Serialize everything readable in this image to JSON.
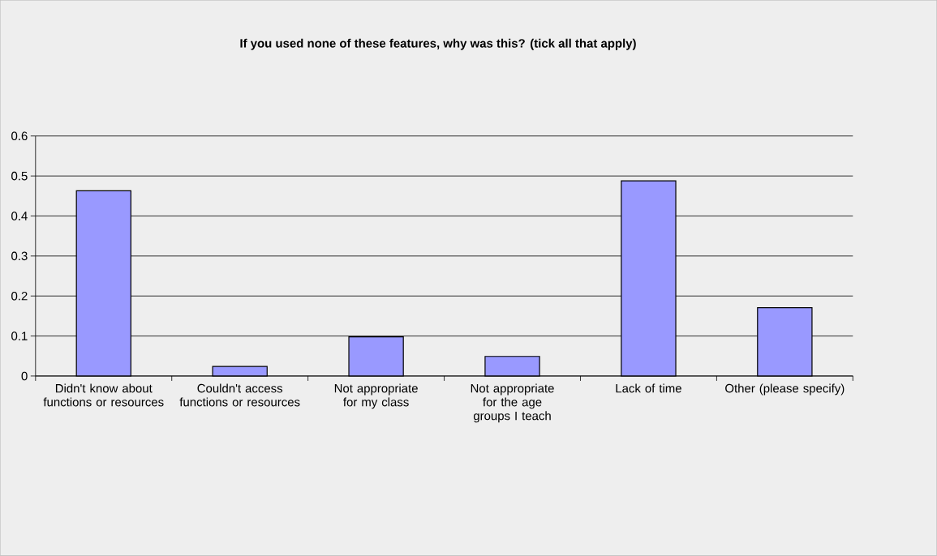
{
  "chart_data": {
    "type": "bar",
    "title": "If you used none of these features, why was this? (tick all that apply)",
    "categories": [
      "Didn't know about functions or resources",
      "Couldn't access functions or resources",
      "Not appropriate for my class",
      "Not appropriate for the age groups I teach",
      "Lack of time",
      "Other (please specify)"
    ],
    "values": [
      0.463,
      0.024,
      0.098,
      0.049,
      0.488,
      0.171
    ],
    "color": "#9999ff",
    "ylim": [
      0,
      0.6
    ],
    "yticks": [
      0,
      0.1,
      0.2,
      0.3,
      0.4,
      0.5,
      0.6
    ],
    "grid": "y"
  }
}
